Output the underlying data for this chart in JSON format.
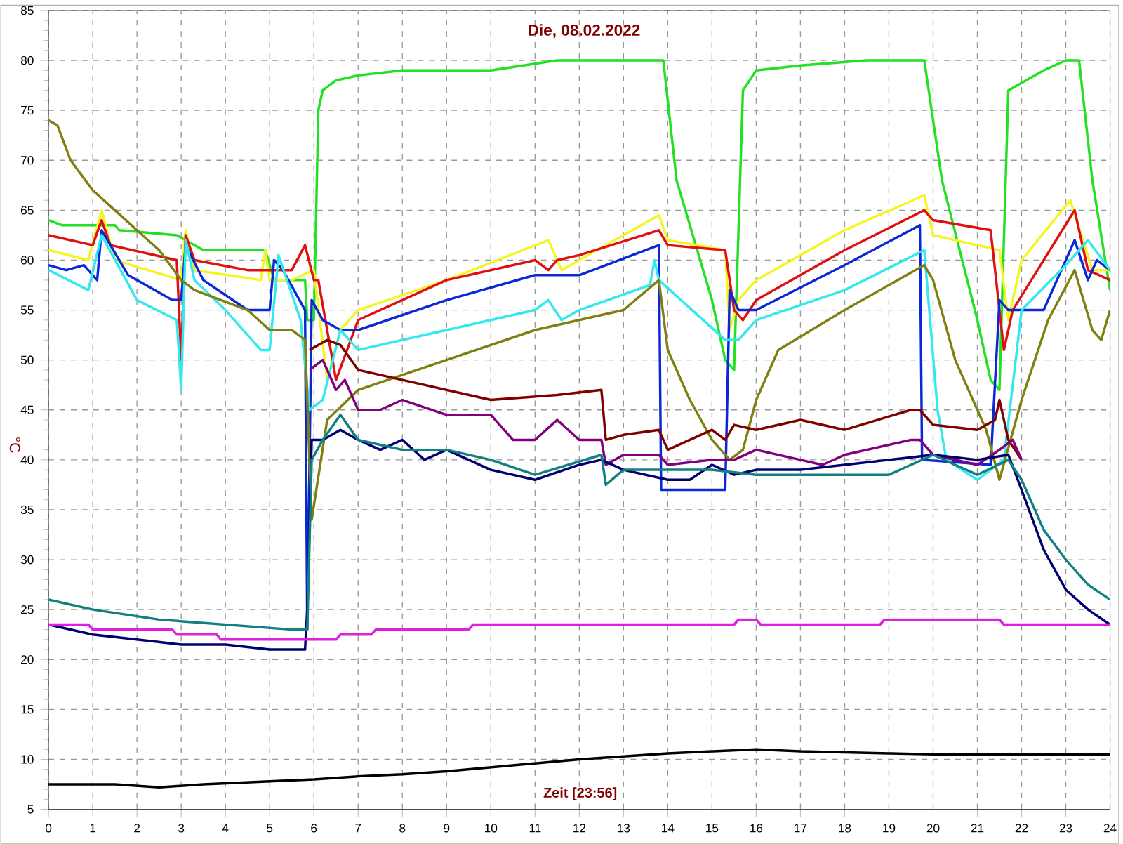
{
  "chart_data": {
    "type": "line",
    "title": "Die, 08.02.2022",
    "xlabel": "Zeit [23:56]",
    "ylabel": "°C",
    "xlim": [
      0,
      24
    ],
    "xticks": [
      0,
      1,
      2,
      3,
      4,
      5,
      6,
      7,
      8,
      9,
      10,
      11,
      12,
      13,
      14,
      15,
      16,
      17,
      18,
      19,
      20,
      21,
      22,
      23,
      24
    ],
    "ylim": [
      5,
      85
    ],
    "yticks": [
      5,
      10,
      15,
      20,
      25,
      30,
      35,
      40,
      45,
      50,
      55,
      60,
      65,
      70,
      75,
      80,
      85
    ],
    "grid": true,
    "legend": false,
    "marker": "none",
    "line_style": "solid",
    "series": [
      {
        "color": "#22e022",
        "x": [
          0,
          0.3,
          1.5,
          1.6,
          2.9,
          3.1,
          3.5,
          4.9,
          5.1,
          5.8,
          5.85,
          6.0,
          6.1,
          6.2,
          6.5,
          7.0,
          8.0,
          10.0,
          11.5,
          13.0,
          13.9,
          14.2,
          15.0,
          15.3,
          15.5,
          15.7,
          16.0,
          17.0,
          18.5,
          19.8,
          20.2,
          21.0,
          21.3,
          21.5,
          21.7,
          22.5,
          23.0,
          23.3,
          23.6,
          24.0
        ],
        "values": [
          64,
          63.5,
          63.5,
          63,
          62.5,
          62,
          61,
          61,
          58,
          58,
          54,
          54,
          75,
          77,
          78,
          78.5,
          79,
          79,
          80,
          80,
          80,
          68,
          56,
          50,
          49,
          77,
          79,
          79.5,
          80,
          80,
          68,
          54,
          48,
          47,
          77,
          79,
          80,
          80,
          68,
          57
        ]
      },
      {
        "color": "#f5f522",
        "x": [
          0,
          0.9,
          1.2,
          1.5,
          3.0,
          3.1,
          3.3,
          4.8,
          4.9,
          5.0,
          5.5,
          6.0,
          6.3,
          6.6,
          7.0,
          9.0,
          11.3,
          11.6,
          12.0,
          13.8,
          14.0,
          15.3,
          15.4,
          15.6,
          16.0,
          18.0,
          19.8,
          20.0,
          21.5,
          21.7,
          22.0,
          23.1,
          23.6,
          24.0
        ],
        "values": [
          61,
          60,
          65,
          60,
          58,
          63,
          59,
          58,
          61,
          58,
          58,
          59,
          48,
          53,
          55,
          58,
          62,
          59,
          60,
          64.5,
          62,
          61,
          53,
          56,
          58,
          63,
          66.5,
          62.5,
          61,
          54,
          60,
          66,
          59,
          59
        ]
      },
      {
        "color": "#e01010",
        "x": [
          0,
          1.0,
          1.2,
          1.4,
          2.9,
          3.0,
          3.1,
          3.3,
          4.5,
          5.0,
          5.5,
          5.8,
          6.0,
          6.1,
          6.3,
          6.5,
          7.0,
          9.0,
          11.0,
          11.3,
          11.5,
          12.0,
          13.8,
          14.0,
          15.3,
          15.5,
          15.7,
          16.0,
          18.0,
          19.8,
          20.0,
          21.3,
          21.6,
          21.8,
          22.5,
          23.2,
          23.5,
          24.0
        ],
        "values": [
          62.5,
          61.5,
          64,
          61.5,
          60,
          50,
          62.5,
          60,
          59,
          59,
          59,
          61.5,
          58,
          58,
          53,
          48,
          54,
          58,
          60,
          59,
          60,
          60.5,
          63,
          61.5,
          61,
          55,
          54,
          56,
          61,
          65,
          64,
          63,
          51,
          55,
          60,
          65,
          59,
          58
        ]
      },
      {
        "color": "#0a28d8",
        "x": [
          0,
          0.4,
          0.8,
          1.1,
          1.2,
          1.8,
          2.8,
          3.0,
          3.1,
          3.5,
          4.5,
          5.0,
          5.1,
          5.3,
          5.8,
          5.85,
          5.95,
          6.2,
          6.6,
          7.0,
          9.0,
          11.0,
          12.0,
          13.8,
          13.85,
          15.3,
          15.4,
          15.6,
          16.0,
          18.0,
          19.7,
          19.75,
          21.3,
          21.5,
          21.7,
          22.5,
          23.2,
          23.5,
          23.7,
          24.0
        ],
        "values": [
          59.5,
          59,
          59.5,
          58,
          63,
          58.5,
          56,
          56,
          61.5,
          58,
          55,
          55,
          60,
          59,
          55,
          23,
          56,
          54,
          53,
          53,
          56,
          58.5,
          58.5,
          61.5,
          37,
          37,
          57,
          55,
          55,
          59.5,
          63.5,
          40,
          39.5,
          56,
          55,
          55,
          62,
          58,
          60,
          59
        ]
      },
      {
        "color": "#33e8ee",
        "x": [
          0,
          0.9,
          1.2,
          2.0,
          2.9,
          3.0,
          3.1,
          3.3,
          4.0,
          4.8,
          5.0,
          5.2,
          5.7,
          5.9,
          6.2,
          6.6,
          7.0,
          9.0,
          11.0,
          11.3,
          11.6,
          12.0,
          13.6,
          13.7,
          13.8,
          15.3,
          15.6,
          16.0,
          18.0,
          19.8,
          20.1,
          20.3,
          21.0,
          21.6,
          22.0,
          23.0,
          23.5,
          24.0
        ],
        "values": [
          59,
          57,
          62.5,
          56,
          54,
          47,
          62,
          58,
          55,
          51,
          51,
          60.5,
          54,
          45,
          46,
          53,
          51,
          53,
          55,
          56,
          54,
          55,
          57.5,
          60,
          58,
          52,
          52,
          54,
          57,
          61,
          45,
          40,
          38,
          40,
          55,
          59.5,
          62,
          59
        ]
      },
      {
        "color": "#808010",
        "x": [
          0,
          0.2,
          0.5,
          1.0,
          1.5,
          2.5,
          3.0,
          3.3,
          4.5,
          5.0,
          5.5,
          5.8,
          5.95,
          6.3,
          7.0,
          9.0,
          11.0,
          13.0,
          13.8,
          14.0,
          14.5,
          15.0,
          15.4,
          15.7,
          16.0,
          16.5,
          18.0,
          19.8,
          20.0,
          20.5,
          21.2,
          21.5,
          22.0,
          22.6,
          23.2,
          23.6,
          23.8,
          24.0
        ],
        "values": [
          74,
          73.5,
          70,
          67,
          65,
          61,
          58,
          57,
          55,
          53,
          53,
          52,
          34,
          44,
          47,
          50,
          53,
          55,
          58,
          51,
          46,
          42,
          40,
          41,
          46,
          51,
          55,
          59.5,
          58,
          50,
          43,
          38,
          46,
          54,
          59,
          53,
          52,
          55
        ]
      },
      {
        "color": "#800000",
        "x": [
          5.9,
          6.3,
          6.6,
          7.0,
          8.0,
          10.0,
          11.5,
          12.5,
          12.6,
          13.0,
          13.8,
          14.0,
          14.5,
          15.0,
          15.3,
          15.5,
          16.0,
          17.0,
          18.0,
          19.5,
          19.7,
          20.0,
          21.0,
          21.4,
          21.5,
          21.7,
          22.0
        ],
        "values": [
          51,
          52,
          51.5,
          49,
          48,
          46,
          46.5,
          47,
          42,
          42.5,
          43,
          41,
          42,
          43,
          42,
          43.5,
          43,
          44,
          43,
          45,
          45,
          43.5,
          43,
          44,
          46,
          42,
          40
        ]
      },
      {
        "color": "#800080",
        "x": [
          5.9,
          6.2,
          6.5,
          6.7,
          7.0,
          7.5,
          8.0,
          9.0,
          10.0,
          10.5,
          11.0,
          11.5,
          12.0,
          12.5,
          12.6,
          13.0,
          13.8,
          14.0,
          15.0,
          15.5,
          16.0,
          17.0,
          17.5,
          18.0,
          19.5,
          19.7,
          20.0,
          21.0,
          21.5,
          21.8,
          22.0
        ],
        "values": [
          49,
          50,
          47,
          48,
          45,
          45,
          46,
          44.5,
          44.5,
          42,
          42,
          44,
          42,
          42,
          39.5,
          40.5,
          40.5,
          39.5,
          40,
          40,
          41,
          40,
          39.5,
          40.5,
          42,
          42,
          40.5,
          39.5,
          41,
          42,
          40
        ]
      },
      {
        "color": "#000070",
        "x": [
          0,
          1.0,
          2.0,
          3.0,
          4.0,
          5.0,
          5.8,
          5.85,
          5.95,
          6.2,
          6.6,
          7.0,
          7.5,
          8.0,
          8.5,
          9.0,
          10.0,
          11.0,
          12.0,
          12.5,
          13.0,
          14.0,
          14.5,
          15.0,
          15.5,
          16.0,
          17.0,
          18.0,
          19.0,
          20.0,
          21.0,
          21.7,
          22.0,
          22.5,
          23.0,
          23.5,
          24.0
        ],
        "values": [
          23.5,
          22.5,
          22,
          21.5,
          21.5,
          21,
          21,
          25,
          42,
          42,
          43,
          42,
          41,
          42,
          40,
          41,
          39,
          38,
          39.5,
          40,
          39,
          38,
          38,
          39.5,
          38.5,
          39,
          39,
          39.5,
          40,
          40.5,
          40,
          40.5,
          37,
          31,
          27,
          25,
          23.5
        ]
      },
      {
        "color": "#108080",
        "x": [
          0,
          1.0,
          2.5,
          4.0,
          5.5,
          5.85,
          5.95,
          6.2,
          6.6,
          7.0,
          7.5,
          8.0,
          9.0,
          10.0,
          11.0,
          12.5,
          12.6,
          13.0,
          14.0,
          15.0,
          16.0,
          17.0,
          18.0,
          19.0,
          20.0,
          20.5,
          21.0,
          21.7,
          22.0,
          22.5,
          23.0,
          23.5,
          24.0
        ],
        "values": [
          26,
          25,
          24,
          23.5,
          23,
          23,
          40,
          42,
          44.5,
          42,
          41.5,
          41,
          41,
          40,
          38.5,
          40.5,
          37.5,
          39,
          39,
          39,
          38.5,
          38.5,
          38.5,
          38.5,
          40.5,
          39.5,
          38.5,
          40,
          38,
          33,
          30,
          27.5,
          26
        ]
      },
      {
        "color": "#e020e0",
        "x": [
          0,
          0.9,
          1.0,
          2.8,
          2.9,
          3.8,
          3.9,
          5.8,
          6.5,
          6.6,
          7.3,
          7.4,
          9.5,
          9.6,
          12.0,
          12.1,
          14.5,
          15.5,
          15.6,
          16.0,
          16.1,
          18.8,
          18.9,
          21.5,
          21.6,
          24.0
        ],
        "values": [
          23.5,
          23.5,
          23,
          23,
          22.5,
          22.5,
          22,
          22,
          22,
          22.5,
          22.5,
          23,
          23,
          23.5,
          23.5,
          23.5,
          23.5,
          23.5,
          24,
          24,
          23.5,
          23.5,
          24,
          24,
          23.5,
          23.5
        ]
      },
      {
        "color": "#000000",
        "x": [
          0,
          1.5,
          2.5,
          3.5,
          5.0,
          6.0,
          7.0,
          8.0,
          9.0,
          10.0,
          11.0,
          12.0,
          13.0,
          14.0,
          15.0,
          16.0,
          17.0,
          18.0,
          19.0,
          20.0,
          22.0,
          24.0
        ],
        "values": [
          7.5,
          7.5,
          7.2,
          7.5,
          7.8,
          8,
          8.3,
          8.5,
          8.8,
          9.2,
          9.6,
          10,
          10.3,
          10.6,
          10.8,
          11,
          10.8,
          10.7,
          10.6,
          10.5,
          10.5,
          10.5
        ]
      }
    ]
  }
}
